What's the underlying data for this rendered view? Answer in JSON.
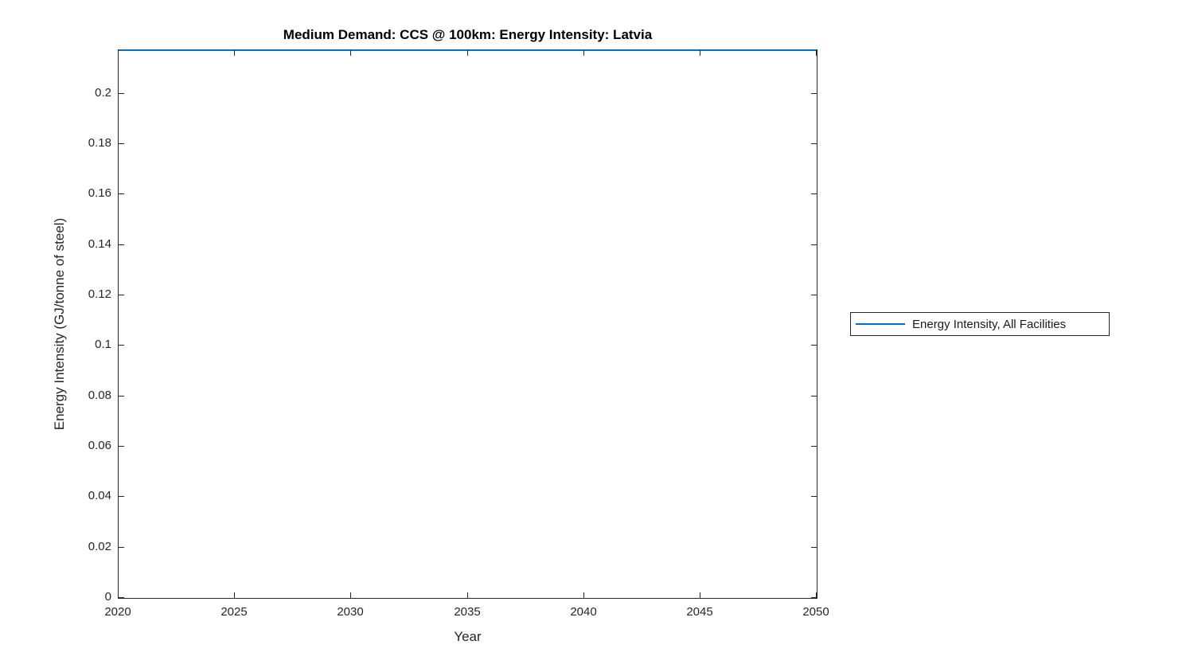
{
  "figure": {
    "title": "Medium Demand: CCS @ 100km: Energy Intensity: Latvia",
    "xlabel": "Year",
    "ylabel": "Energy Intensity (GJ/tonne of steel)"
  },
  "axes": {
    "x_ticks": [
      {
        "v": 2020,
        "label": "2020"
      },
      {
        "v": 2025,
        "label": "2025"
      },
      {
        "v": 2030,
        "label": "2030"
      },
      {
        "v": 2035,
        "label": "2035"
      },
      {
        "v": 2040,
        "label": "2040"
      },
      {
        "v": 2045,
        "label": "2045"
      },
      {
        "v": 2050,
        "label": "2050"
      }
    ],
    "y_ticks": [
      {
        "v": 0,
        "label": "0"
      },
      {
        "v": 0.02,
        "label": "0.02"
      },
      {
        "v": 0.04,
        "label": "0.04"
      },
      {
        "v": 0.06,
        "label": "0.06"
      },
      {
        "v": 0.08,
        "label": "0.08"
      },
      {
        "v": 0.1,
        "label": "0.1"
      },
      {
        "v": 0.12,
        "label": "0.12"
      },
      {
        "v": 0.14,
        "label": "0.14"
      },
      {
        "v": 0.16,
        "label": "0.16"
      },
      {
        "v": 0.18,
        "label": "0.18"
      },
      {
        "v": 0.2,
        "label": "0.2"
      }
    ],
    "axis_color": "#262626",
    "background": "#ffffff",
    "tick_direction": "in"
  },
  "legend": {
    "entries": [
      {
        "label": "Energy Intensity, All Facilities",
        "color": "#0072BD"
      }
    ]
  },
  "chart_data": {
    "type": "line",
    "title": "Medium Demand: CCS @ 100km: Energy Intensity: Latvia",
    "xlabel": "Year",
    "ylabel": "Energy Intensity (GJ/tonne of steel)",
    "xlim": [
      2020,
      2050
    ],
    "ylim": [
      0,
      0.2173
    ],
    "grid": false,
    "legend_position": "right-outside",
    "series": [
      {
        "name": "Energy Intensity, All Facilities",
        "color": "#0072BD",
        "x": [
          2020,
          2025,
          2030,
          2035,
          2040,
          2045,
          2050
        ],
        "y": [
          0.2173,
          0.2173,
          0.2173,
          0.2173,
          0.2173,
          0.2173,
          0.2173
        ]
      }
    ]
  }
}
